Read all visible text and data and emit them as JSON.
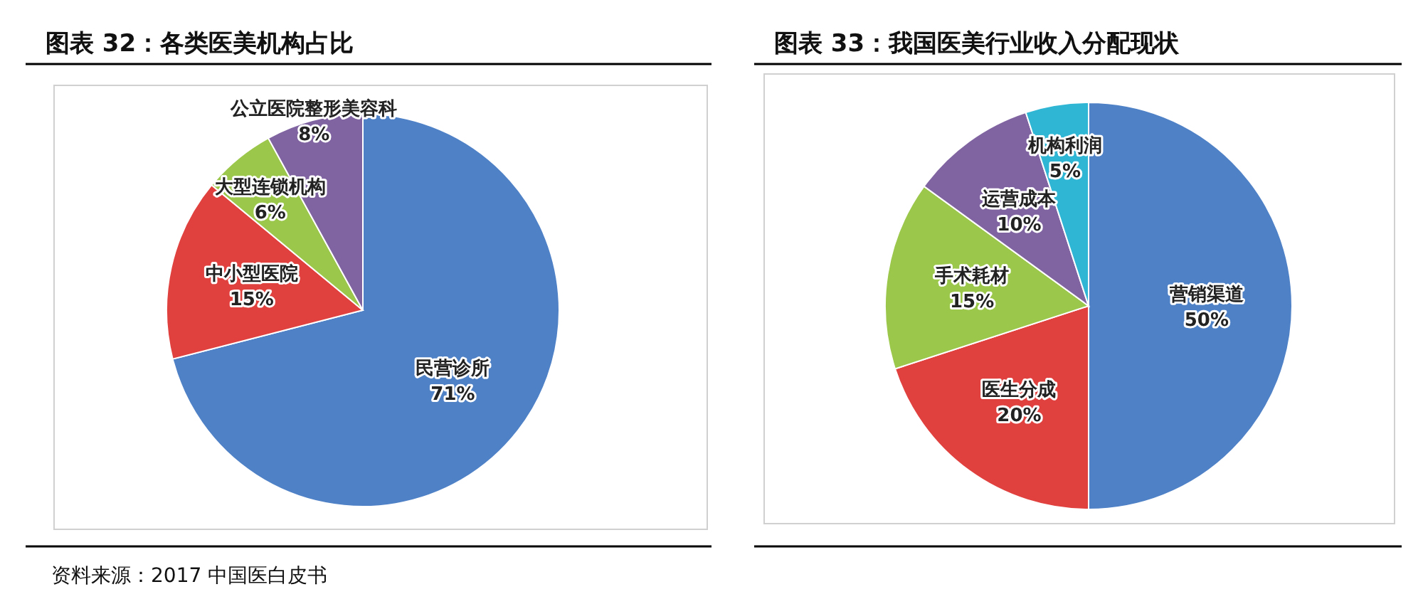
{
  "chart_data": [
    {
      "type": "pie",
      "title": "图表 32：各类医美机构占比",
      "categories": [
        "民营诊所",
        "中小型医院",
        "大型连锁机构",
        "公立医院整形美容科"
      ],
      "values": [
        71,
        15,
        6,
        8
      ],
      "value_labels": [
        "71%",
        "15%",
        "6%",
        "8%"
      ],
      "colors": [
        "#4f81c7",
        "#e0413f",
        "#9bc74a",
        "#8064a2"
      ],
      "annotations": [
        "资料来源：2017 中国医白皮书"
      ]
    },
    {
      "type": "pie",
      "title": "图表 33：我国医美行业收入分配现状",
      "categories": [
        "营销渠道",
        "医生分成",
        "手术耗材",
        "运营成本",
        "机构利润"
      ],
      "values": [
        50,
        20,
        15,
        10,
        5
      ],
      "value_labels": [
        "50%",
        "20%",
        "15%",
        "10%",
        "5%"
      ],
      "colors": [
        "#4f81c7",
        "#e0413f",
        "#9bc74a",
        "#8064a2",
        "#2fb6d4"
      ]
    }
  ]
}
